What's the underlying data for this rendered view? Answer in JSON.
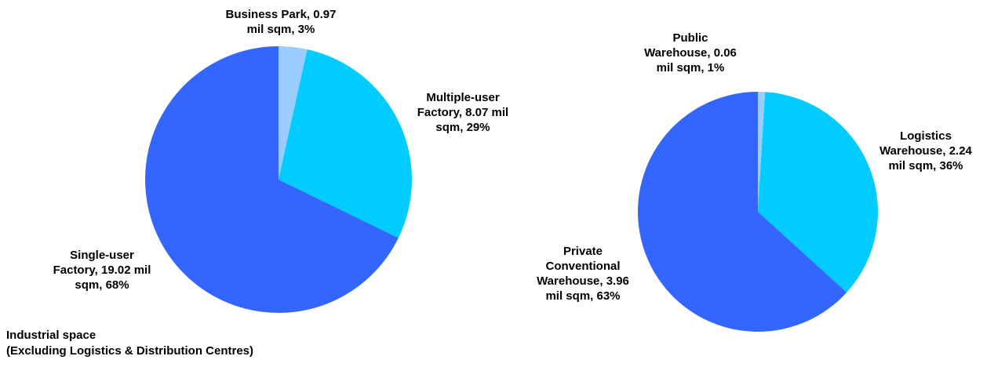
{
  "chart_data": [
    {
      "type": "pie",
      "slices": [
        {
          "name": "Business Park",
          "value": 0.97,
          "unit": "mil sqm",
          "percent": 3,
          "color": "#99CCFF",
          "label_lines": [
            "Business Park, 0.97",
            "mil sqm, 3%"
          ]
        },
        {
          "name": "Multiple-user Factory",
          "value": 8.07,
          "unit": "mil sqm",
          "percent": 29,
          "color": "#00CCFF",
          "label_lines": [
            "Multiple-user",
            "Factory, 8.07 mil",
            "sqm, 29%"
          ]
        },
        {
          "name": "Single-user Factory",
          "value": 19.02,
          "unit": "mil sqm",
          "percent": 68,
          "color": "#3366FF",
          "label_lines": [
            "Single-user",
            "Factory, 19.02 mil",
            "sqm, 68%"
          ]
        }
      ],
      "caption_lines": [
        "Industrial space",
        "(Excluding Logistics & Distribution Centres)"
      ]
    },
    {
      "type": "pie",
      "slices": [
        {
          "name": "Public Warehouse",
          "value": 0.06,
          "unit": "mil sqm",
          "percent": 1,
          "color": "#99CCFF",
          "label_lines": [
            "Public",
            "Warehouse, 0.06",
            "mil sqm, 1%"
          ]
        },
        {
          "name": "Logistics Warehouse",
          "value": 2.24,
          "unit": "mil sqm",
          "percent": 36,
          "color": "#00CCFF",
          "label_lines": [
            "Logistics",
            "Warehouse, 2.24",
            "mil sqm, 36%"
          ]
        },
        {
          "name": "Private Conventional Warehouse",
          "value": 3.96,
          "unit": "mil sqm",
          "percent": 63,
          "color": "#3366FF",
          "label_lines": [
            "Private",
            "Conventional",
            "Warehouse, 3.96",
            "mil sqm, 63%"
          ]
        }
      ]
    }
  ]
}
